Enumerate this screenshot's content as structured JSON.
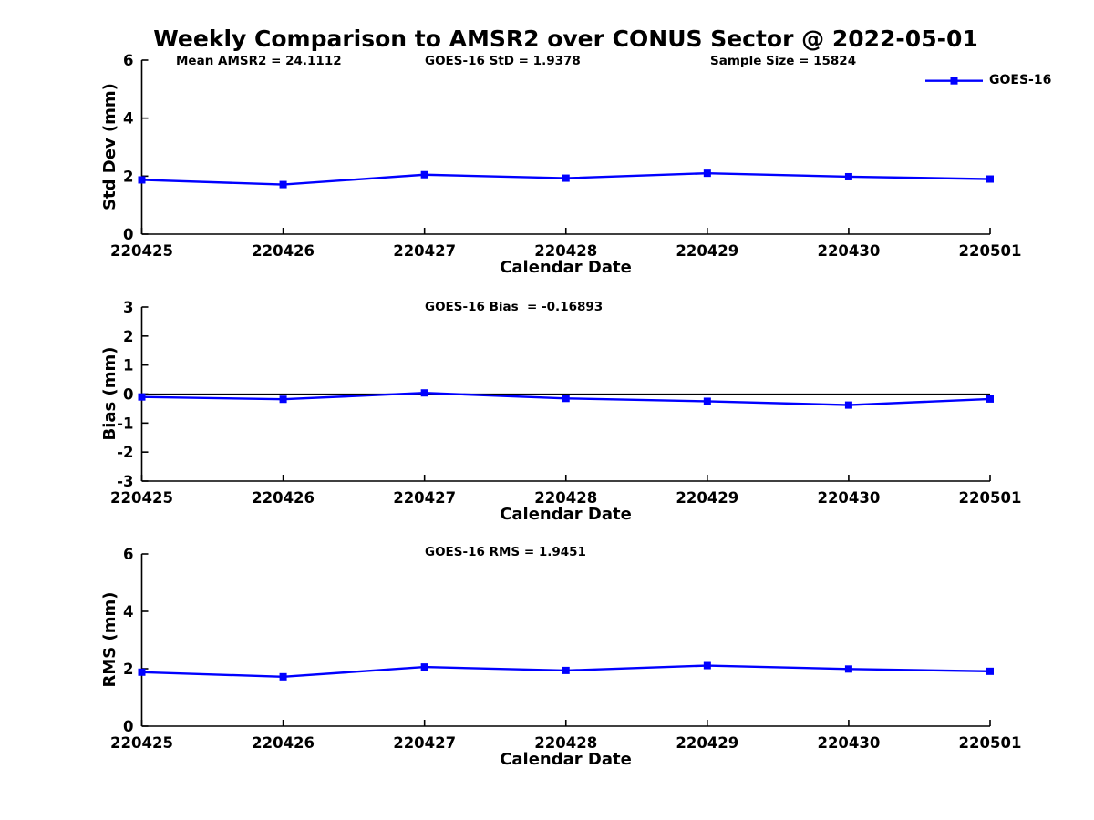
{
  "title": "Weekly Comparison to AMSR2 over CONUS Sector @ 2022-05-01",
  "annotations": {
    "mean_amsr2": "Mean AMSR2 = 24.1112",
    "goes16_std": "GOES-16 StD = 1.9378",
    "sample_size": "Sample Size = 15824"
  },
  "legend": {
    "label": "GOES-16",
    "position": "top-right-outside",
    "marker": "filled-square",
    "line_color": "#0000FF"
  },
  "colors": {
    "line": "#0000FF",
    "marker": "#0000FF",
    "axis": "#000000",
    "zero_line": "#000000",
    "text": "#000000",
    "background": "#FFFFFF"
  },
  "chart_data": [
    {
      "type": "line",
      "panel": "std-dev",
      "annotation": "",
      "ylabel": "Std Dev (mm)",
      "xlabel": "Calendar Date",
      "ylim": [
        0,
        6
      ],
      "yticks": [
        0,
        2,
        4,
        6
      ],
      "grid": false,
      "zero_line": false,
      "categories": [
        "220425",
        "220426",
        "220427",
        "220428",
        "220429",
        "220430",
        "220501"
      ],
      "series": [
        {
          "name": "GOES-16",
          "values": [
            1.87,
            1.71,
            2.05,
            1.93,
            2.1,
            1.98,
            1.9
          ]
        }
      ]
    },
    {
      "type": "line",
      "panel": "bias",
      "annotation": "GOES-16 Bias  = -0.16893",
      "ylabel": "Bias (mm)",
      "xlabel": "Calendar Date",
      "ylim": [
        -3,
        3
      ],
      "yticks": [
        -3,
        -2,
        -1,
        0,
        1,
        2,
        3
      ],
      "grid": false,
      "zero_line": true,
      "categories": [
        "220425",
        "220426",
        "220427",
        "220428",
        "220429",
        "220430",
        "220501"
      ],
      "series": [
        {
          "name": "GOES-16",
          "values": [
            -0.1,
            -0.18,
            0.04,
            -0.15,
            -0.25,
            -0.38,
            -0.17
          ]
        }
      ]
    },
    {
      "type": "line",
      "panel": "rms",
      "annotation": "GOES-16 RMS = 1.9451",
      "ylabel": "RMS (mm)",
      "xlabel": "Calendar Date",
      "ylim": [
        0,
        6
      ],
      "yticks": [
        0,
        2,
        4,
        6
      ],
      "grid": false,
      "zero_line": false,
      "categories": [
        "220425",
        "220426",
        "220427",
        "220428",
        "220429",
        "220430",
        "220501"
      ],
      "series": [
        {
          "name": "GOES-16",
          "values": [
            1.88,
            1.72,
            2.06,
            1.94,
            2.11,
            1.99,
            1.91
          ]
        }
      ]
    }
  ]
}
